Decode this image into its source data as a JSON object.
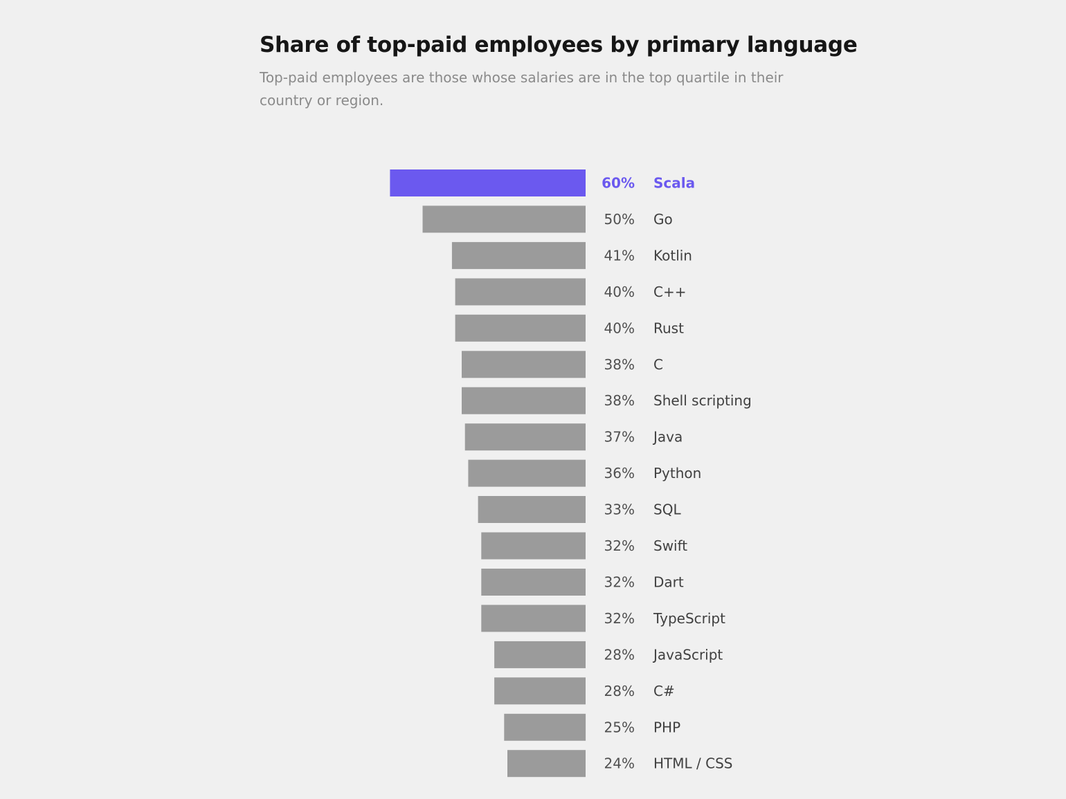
{
  "chart_data": {
    "type": "bar",
    "orientation": "horizontal",
    "title": "Share of top-paid employees by primary language",
    "subtitle": "Top-paid employees are those whose salaries are in the top quartile in their country or region.",
    "categories": [
      "Scala",
      "Go",
      "Kotlin",
      "C++",
      "Rust",
      "C",
      "Shell scripting",
      "Java",
      "Python",
      "SQL",
      "Swift",
      "Dart",
      "TypeScript",
      "JavaScript",
      "C#",
      "PHP",
      "HTML / CSS"
    ],
    "values": [
      60,
      50,
      41,
      40,
      40,
      38,
      38,
      37,
      36,
      33,
      32,
      32,
      32,
      28,
      28,
      25,
      24
    ],
    "value_labels": [
      "60%",
      "50%",
      "41%",
      "40%",
      "40%",
      "38%",
      "38%",
      "37%",
      "36%",
      "33%",
      "32%",
      "32%",
      "32%",
      "28%",
      "28%",
      "25%",
      "24%"
    ],
    "highlight_category": "Scala",
    "bar_direction": "right-aligned, extending left",
    "xlim": [
      0,
      60
    ],
    "axes_visible": false,
    "grid": false,
    "legend": "none",
    "colors": {
      "highlight": "#6b59ef",
      "bar": "#9b9b9b",
      "background": "#f0f0f0"
    }
  }
}
